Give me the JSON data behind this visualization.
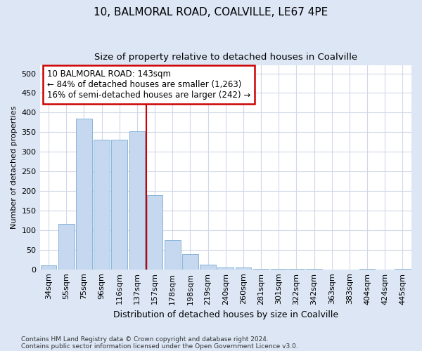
{
  "title": "10, BALMORAL ROAD, COALVILLE, LE67 4PE",
  "subtitle": "Size of property relative to detached houses in Coalville",
  "xlabel": "Distribution of detached houses by size in Coalville",
  "ylabel": "Number of detached properties",
  "categories": [
    "34sqm",
    "55sqm",
    "75sqm",
    "96sqm",
    "116sqm",
    "137sqm",
    "157sqm",
    "178sqm",
    "198sqm",
    "219sqm",
    "240sqm",
    "260sqm",
    "281sqm",
    "301sqm",
    "322sqm",
    "342sqm",
    "363sqm",
    "383sqm",
    "404sqm",
    "424sqm",
    "445sqm"
  ],
  "values": [
    10,
    115,
    385,
    330,
    330,
    353,
    190,
    75,
    38,
    12,
    5,
    4,
    1,
    1,
    1,
    1,
    0,
    0,
    1,
    0,
    2
  ],
  "bar_color": "#c5d8ef",
  "bar_edge_color": "#7badd4",
  "vline_color": "#cc0000",
  "annotation_text": "10 BALMORAL ROAD: 143sqm\n← 84% of detached houses are smaller (1,263)\n16% of semi-detached houses are larger (242) →",
  "annotation_box_color": "#ffffff",
  "annotation_box_edge": "#cc0000",
  "figure_bg_color": "#dce6f5",
  "plot_bg_color": "#ffffff",
  "grid_color": "#d0d8e8",
  "ylim": [
    0,
    520
  ],
  "yticks": [
    0,
    50,
    100,
    150,
    200,
    250,
    300,
    350,
    400,
    450,
    500
  ],
  "footer_line1": "Contains HM Land Registry data © Crown copyright and database right 2024.",
  "footer_line2": "Contains public sector information licensed under the Open Government Licence v3.0.",
  "title_fontsize": 11,
  "subtitle_fontsize": 9.5,
  "xlabel_fontsize": 9,
  "ylabel_fontsize": 8,
  "tick_fontsize": 8,
  "annotation_fontsize": 8.5,
  "footer_fontsize": 6.5
}
